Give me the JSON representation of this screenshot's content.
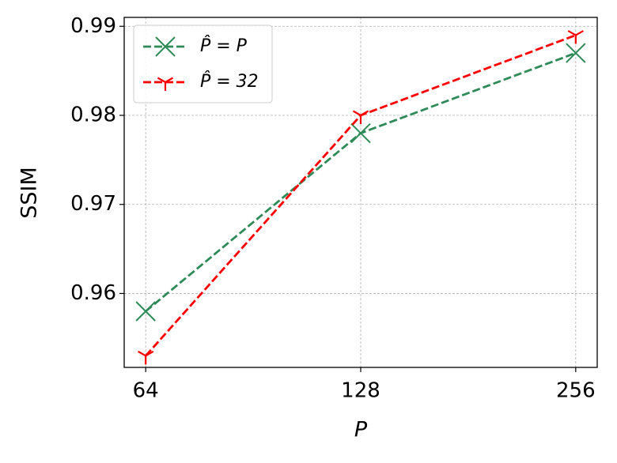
{
  "chart_data": {
    "type": "line",
    "xlabel": "P",
    "ylabel": "SSIM",
    "categories": [
      "64",
      "128",
      "256"
    ],
    "series": [
      {
        "name": "P̂ = P",
        "color": "#2e8b57",
        "marker": "x",
        "values": [
          0.958,
          0.978,
          0.987
        ]
      },
      {
        "name": "P̂ = 32",
        "color": "#ff0000",
        "marker": "tri_down",
        "values": [
          0.953,
          0.98,
          0.989
        ]
      }
    ],
    "ylim": [
      0.9517,
      0.991
    ],
    "yticks": [
      0.96,
      0.97,
      0.98,
      0.99
    ],
    "grid": true,
    "legend": "upper left"
  }
}
